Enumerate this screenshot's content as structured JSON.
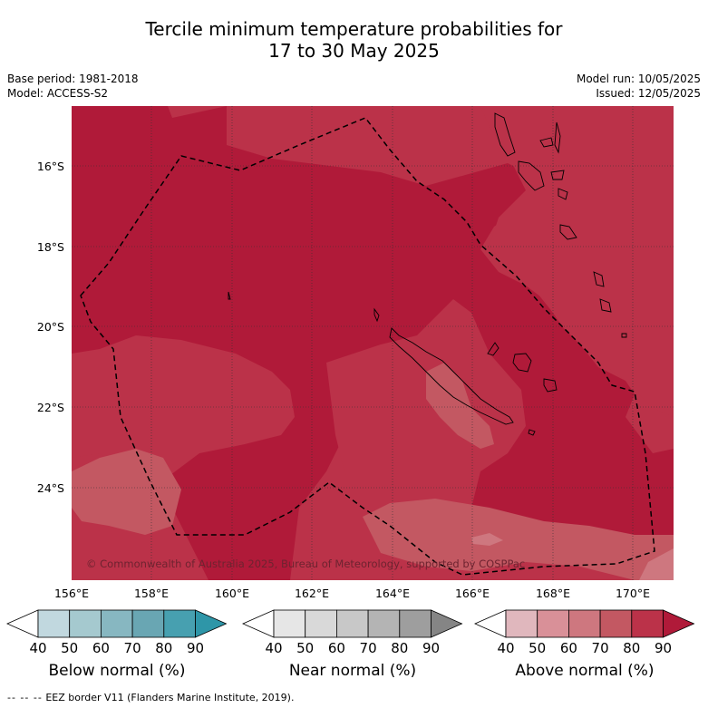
{
  "title": {
    "line1": "Tercile minimum temperature probabilities for",
    "line2": "17 to 30 May 2025"
  },
  "meta": {
    "base_period": "Base period: 1981-2018",
    "model": "Model: ACCESS-S2",
    "model_run": "Model run: 10/05/2025",
    "issued": "Issued: 12/05/2025"
  },
  "map": {
    "lat_labels": [
      "16°S",
      "18°S",
      "20°S",
      "22°S",
      "24°S"
    ],
    "lon_labels": [
      "156°E",
      "158°E",
      "160°E",
      "162°E",
      "164°E",
      "166°E",
      "168°E",
      "170°E"
    ],
    "copyright": "© Commonwealth of Australia 2025, Bureau of Meteorology, supported by COSPPac"
  },
  "colorbars": [
    {
      "name": "below",
      "label": "Below normal (%)",
      "ticks": [
        "40",
        "50",
        "60",
        "70",
        "80",
        "90"
      ],
      "colors": [
        "#ffffff",
        "#c1d8df",
        "#a5c9cf",
        "#87b7c1",
        "#69a6b3",
        "#47a0b0",
        "#2e96a8"
      ]
    },
    {
      "name": "near",
      "label": "Near normal (%)",
      "ticks": [
        "40",
        "50",
        "60",
        "70",
        "80",
        "90"
      ],
      "colors": [
        "#ffffff",
        "#e6e6e6",
        "#d9d9d9",
        "#c8c8c8",
        "#b4b4b4",
        "#9e9e9e",
        "#858585"
      ]
    },
    {
      "name": "above",
      "label": "Above normal (%)",
      "ticks": [
        "40",
        "50",
        "60",
        "70",
        "80",
        "90"
      ],
      "colors": [
        "#ffffff",
        "#e0b7bd",
        "#d99098",
        "#ce777f",
        "#c35862",
        "#bb3249",
        "#b01a39"
      ]
    }
  ],
  "footer": {
    "dash": "--  --  --",
    "text": "EEZ border V11 (Flanders Marine Institute, 2019)."
  },
  "colors": {
    "above_80": "#bb3249",
    "above_90": "#b01a39",
    "above_70": "#c35862",
    "above_60": "#ce777f"
  }
}
